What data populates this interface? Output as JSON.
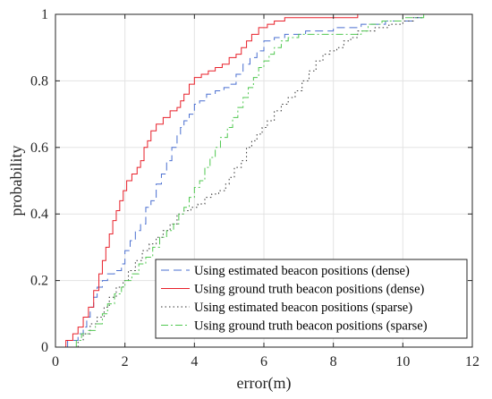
{
  "chart_data": {
    "type": "line",
    "title": "",
    "xlabel": "error(m)",
    "ylabel": "probability",
    "xlim": [
      0,
      12
    ],
    "ylim": [
      0,
      1
    ],
    "x_ticks": [
      "0",
      "2",
      "4",
      "6",
      "8",
      "10",
      "12"
    ],
    "y_ticks": [
      "0",
      "0.2",
      "0.4",
      "0.6",
      "0.8",
      "1"
    ],
    "grid": true,
    "legend_position": "bottom-right",
    "series": [
      {
        "name": "Using estimated beacon positions (dense)",
        "color": "#4a6fd0",
        "dash": "dashed",
        "points": [
          [
            0.35,
            0
          ],
          [
            0.35,
            0.02
          ],
          [
            0.55,
            0.02
          ],
          [
            0.65,
            0.04
          ],
          [
            0.8,
            0.06
          ],
          [
            0.9,
            0.09
          ],
          [
            1.0,
            0.12
          ],
          [
            1.1,
            0.15
          ],
          [
            1.2,
            0.18
          ],
          [
            1.35,
            0.2
          ],
          [
            1.5,
            0.22
          ],
          [
            1.7,
            0.23
          ],
          [
            1.9,
            0.25
          ],
          [
            2.0,
            0.29
          ],
          [
            2.15,
            0.32
          ],
          [
            2.3,
            0.35
          ],
          [
            2.45,
            0.37
          ],
          [
            2.6,
            0.42
          ],
          [
            2.75,
            0.44
          ],
          [
            2.9,
            0.49
          ],
          [
            3.05,
            0.52
          ],
          [
            3.2,
            0.56
          ],
          [
            3.35,
            0.6
          ],
          [
            3.5,
            0.64
          ],
          [
            3.6,
            0.66
          ],
          [
            3.7,
            0.68
          ],
          [
            3.85,
            0.7
          ],
          [
            4.0,
            0.73
          ],
          [
            4.15,
            0.74
          ],
          [
            4.35,
            0.76
          ],
          [
            4.6,
            0.77
          ],
          [
            4.85,
            0.78
          ],
          [
            5.0,
            0.79
          ],
          [
            5.2,
            0.82
          ],
          [
            5.4,
            0.85
          ],
          [
            5.6,
            0.87
          ],
          [
            5.8,
            0.89
          ],
          [
            6.0,
            0.92
          ],
          [
            6.3,
            0.93
          ],
          [
            6.6,
            0.94
          ],
          [
            7.2,
            0.95
          ],
          [
            8.0,
            0.96
          ],
          [
            8.8,
            0.97
          ],
          [
            9.5,
            0.98
          ],
          [
            10.3,
            0.99
          ],
          [
            10.6,
            1.0
          ],
          [
            11.0,
            1.0
          ]
        ]
      },
      {
        "name": "Using ground truth beacon positions (dense)",
        "color": "#e8202a",
        "dash": "solid",
        "points": [
          [
            0.3,
            0
          ],
          [
            0.3,
            0.02
          ],
          [
            0.5,
            0.04
          ],
          [
            0.65,
            0.06
          ],
          [
            0.8,
            0.09
          ],
          [
            0.95,
            0.12
          ],
          [
            1.1,
            0.17
          ],
          [
            1.25,
            0.22
          ],
          [
            1.35,
            0.26
          ],
          [
            1.45,
            0.3
          ],
          [
            1.55,
            0.34
          ],
          [
            1.65,
            0.38
          ],
          [
            1.75,
            0.41
          ],
          [
            1.85,
            0.44
          ],
          [
            1.95,
            0.47
          ],
          [
            2.05,
            0.5
          ],
          [
            2.2,
            0.52
          ],
          [
            2.35,
            0.54
          ],
          [
            2.45,
            0.56
          ],
          [
            2.55,
            0.6
          ],
          [
            2.65,
            0.62
          ],
          [
            2.75,
            0.65
          ],
          [
            2.9,
            0.67
          ],
          [
            3.1,
            0.69
          ],
          [
            3.3,
            0.71
          ],
          [
            3.5,
            0.72
          ],
          [
            3.6,
            0.74
          ],
          [
            3.7,
            0.76
          ],
          [
            3.85,
            0.79
          ],
          [
            4.0,
            0.81
          ],
          [
            4.2,
            0.82
          ],
          [
            4.4,
            0.83
          ],
          [
            4.6,
            0.84
          ],
          [
            4.8,
            0.85
          ],
          [
            5.0,
            0.87
          ],
          [
            5.2,
            0.88
          ],
          [
            5.35,
            0.9
          ],
          [
            5.5,
            0.92
          ],
          [
            5.65,
            0.94
          ],
          [
            5.85,
            0.96
          ],
          [
            6.1,
            0.97
          ],
          [
            6.3,
            0.98
          ],
          [
            6.6,
            0.99
          ],
          [
            7.0,
            0.99
          ],
          [
            8.7,
            0.99
          ],
          [
            8.7,
            1.0
          ],
          [
            11.0,
            1.0
          ]
        ]
      },
      {
        "name": "Using estimated beacon positions (sparse)",
        "color": "#333333",
        "dash": "dotted",
        "points": [
          [
            0.65,
            0
          ],
          [
            0.65,
            0.02
          ],
          [
            0.8,
            0.04
          ],
          [
            1.0,
            0.07
          ],
          [
            1.2,
            0.09
          ],
          [
            1.4,
            0.12
          ],
          [
            1.55,
            0.15
          ],
          [
            1.75,
            0.18
          ],
          [
            1.95,
            0.2
          ],
          [
            2.1,
            0.23
          ],
          [
            2.3,
            0.26
          ],
          [
            2.5,
            0.29
          ],
          [
            2.7,
            0.31
          ],
          [
            2.9,
            0.33
          ],
          [
            3.1,
            0.35
          ],
          [
            3.3,
            0.37
          ],
          [
            3.5,
            0.4
          ],
          [
            3.7,
            0.41
          ],
          [
            3.9,
            0.42
          ],
          [
            4.1,
            0.43
          ],
          [
            4.3,
            0.45
          ],
          [
            4.5,
            0.46
          ],
          [
            4.7,
            0.47
          ],
          [
            4.9,
            0.49
          ],
          [
            5.0,
            0.51
          ],
          [
            5.15,
            0.54
          ],
          [
            5.35,
            0.56
          ],
          [
            5.5,
            0.6
          ],
          [
            5.65,
            0.62
          ],
          [
            5.8,
            0.64
          ],
          [
            5.95,
            0.66
          ],
          [
            6.1,
            0.68
          ],
          [
            6.3,
            0.71
          ],
          [
            6.5,
            0.73
          ],
          [
            6.7,
            0.75
          ],
          [
            6.9,
            0.77
          ],
          [
            7.1,
            0.8
          ],
          [
            7.3,
            0.83
          ],
          [
            7.5,
            0.86
          ],
          [
            7.7,
            0.88
          ],
          [
            7.9,
            0.89
          ],
          [
            8.1,
            0.9
          ],
          [
            8.3,
            0.92
          ],
          [
            8.5,
            0.93
          ],
          [
            8.7,
            0.95
          ],
          [
            9.2,
            0.96
          ],
          [
            9.6,
            0.97
          ],
          [
            10.0,
            0.98
          ],
          [
            10.3,
            0.99
          ],
          [
            10.55,
            1.0
          ],
          [
            11.0,
            1.0
          ]
        ]
      },
      {
        "name": "Using ground truth beacon positions (sparse)",
        "color": "#50c850",
        "dash": "dashdot",
        "points": [
          [
            0.6,
            0
          ],
          [
            0.6,
            0.02
          ],
          [
            0.75,
            0.04
          ],
          [
            0.95,
            0.05
          ],
          [
            1.15,
            0.07
          ],
          [
            1.35,
            0.1
          ],
          [
            1.5,
            0.13
          ],
          [
            1.7,
            0.16
          ],
          [
            1.9,
            0.18
          ],
          [
            2.0,
            0.2
          ],
          [
            2.2,
            0.22
          ],
          [
            2.4,
            0.25
          ],
          [
            2.6,
            0.27
          ],
          [
            2.8,
            0.3
          ],
          [
            3.0,
            0.33
          ],
          [
            3.2,
            0.35
          ],
          [
            3.4,
            0.37
          ],
          [
            3.55,
            0.4
          ],
          [
            3.7,
            0.42
          ],
          [
            3.85,
            0.45
          ],
          [
            4.0,
            0.48
          ],
          [
            4.15,
            0.5
          ],
          [
            4.3,
            0.54
          ],
          [
            4.45,
            0.57
          ],
          [
            4.6,
            0.6
          ],
          [
            4.75,
            0.63
          ],
          [
            4.95,
            0.66
          ],
          [
            5.1,
            0.69
          ],
          [
            5.25,
            0.72
          ],
          [
            5.4,
            0.75
          ],
          [
            5.55,
            0.78
          ],
          [
            5.7,
            0.81
          ],
          [
            5.85,
            0.84
          ],
          [
            6.0,
            0.86
          ],
          [
            6.15,
            0.88
          ],
          [
            6.3,
            0.9
          ],
          [
            6.5,
            0.92
          ],
          [
            6.7,
            0.93
          ],
          [
            7.0,
            0.94
          ],
          [
            8.0,
            0.94
          ],
          [
            8.8,
            0.95
          ],
          [
            9.0,
            0.97
          ],
          [
            9.4,
            0.98
          ],
          [
            10.0,
            0.99
          ],
          [
            10.4,
            0.99
          ],
          [
            10.6,
            1.0
          ],
          [
            11.0,
            1.0
          ]
        ]
      }
    ]
  }
}
